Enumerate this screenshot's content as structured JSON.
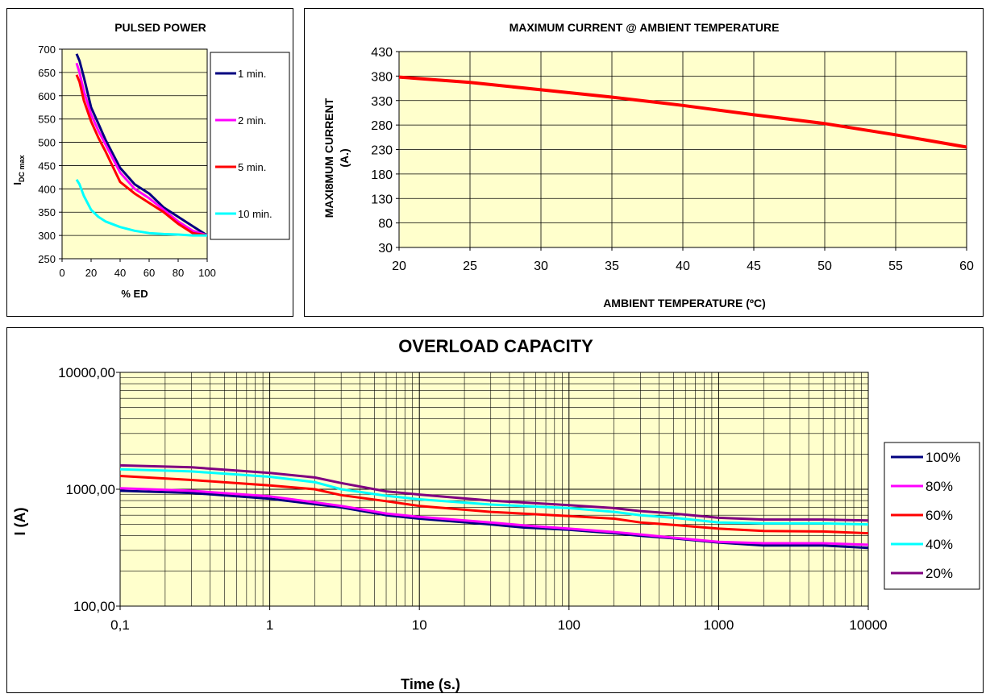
{
  "colors": {
    "plot_bg": "#ffffcc",
    "grid": "#000000",
    "navy": "#000080",
    "magenta": "#ff00ff",
    "red": "#ff0000",
    "cyan": "#00ffff",
    "purple": "#800080"
  },
  "chart_data": [
    {
      "type": "line",
      "title": "PULSED POWER",
      "xlabel": "% ED",
      "ylabel_main": "I",
      "ylabel_sub": "DC max",
      "xlim": [
        0,
        100
      ],
      "ylim": [
        250,
        700
      ],
      "x_ticks": [
        "0",
        "20",
        "40",
        "60",
        "80",
        "100"
      ],
      "y_ticks": [
        "250",
        "300",
        "350",
        "400",
        "450",
        "500",
        "550",
        "600",
        "650",
        "700"
      ],
      "grid": "horizontal",
      "legend_position": "right",
      "series": [
        {
          "name": "1 min.",
          "color": "navy",
          "points": [
            [
              10,
              690
            ],
            [
              12,
              675
            ],
            [
              15,
              640
            ],
            [
              20,
              575
            ],
            [
              25,
              540
            ],
            [
              30,
              505
            ],
            [
              40,
              445
            ],
            [
              50,
              410
            ],
            [
              60,
              390
            ],
            [
              70,
              360
            ],
            [
              80,
              340
            ],
            [
              90,
              320
            ],
            [
              100,
              300
            ]
          ]
        },
        {
          "name": "2 min.",
          "color": "magenta",
          "points": [
            [
              10,
              670
            ],
            [
              12,
              650
            ],
            [
              15,
              610
            ],
            [
              20,
              560
            ],
            [
              25,
              525
            ],
            [
              30,
              495
            ],
            [
              40,
              435
            ],
            [
              50,
              400
            ],
            [
              60,
              380
            ],
            [
              70,
              355
            ],
            [
              80,
              330
            ],
            [
              90,
              310
            ],
            [
              100,
              300
            ]
          ]
        },
        {
          "name": "5 min.",
          "color": "red",
          "points": [
            [
              10,
              645
            ],
            [
              12,
              630
            ],
            [
              15,
              590
            ],
            [
              20,
              545
            ],
            [
              25,
              510
            ],
            [
              30,
              480
            ],
            [
              40,
              415
            ],
            [
              50,
              390
            ],
            [
              60,
              370
            ],
            [
              70,
              350
            ],
            [
              80,
              325
            ],
            [
              90,
              305
            ],
            [
              100,
              300
            ]
          ]
        },
        {
          "name": "10 min.",
          "color": "cyan",
          "points": [
            [
              10,
              420
            ],
            [
              12,
              410
            ],
            [
              15,
              385
            ],
            [
              20,
              355
            ],
            [
              25,
              340
            ],
            [
              30,
              330
            ],
            [
              40,
              318
            ],
            [
              50,
              310
            ],
            [
              60,
              305
            ],
            [
              70,
              303
            ],
            [
              80,
              302
            ],
            [
              90,
              300
            ],
            [
              100,
              300
            ]
          ]
        }
      ]
    },
    {
      "type": "line",
      "title": "MAXIMUM CURRENT @ AMBIENT TEMPERATURE",
      "xlabel": "AMBIENT TEMPERATURE (ºC)",
      "ylabel_line1": "MAXI8MUM CURRENT",
      "ylabel_line2": "(A.)",
      "xlim": [
        20,
        60
      ],
      "ylim": [
        30,
        430
      ],
      "x_ticks": [
        "20",
        "25",
        "30",
        "35",
        "40",
        "45",
        "50",
        "55",
        "60"
      ],
      "y_ticks": [
        "30",
        "80",
        "130",
        "180",
        "230",
        "280",
        "330",
        "380",
        "430"
      ],
      "grid": "both",
      "series": [
        {
          "color": "red",
          "points": [
            [
              20,
              378
            ],
            [
              25,
              367
            ],
            [
              30,
              352
            ],
            [
              35,
              337
            ],
            [
              40,
              320
            ],
            [
              45,
              301
            ],
            [
              50,
              283
            ],
            [
              55,
              260
            ],
            [
              60,
              235
            ]
          ]
        }
      ]
    },
    {
      "type": "line",
      "title": "OVERLOAD CAPACITY",
      "xlabel": "Time (s.)",
      "ylabel": "I (A)",
      "xscale": "log",
      "yscale": "log",
      "xlim": [
        0.1,
        10000
      ],
      "ylim": [
        100,
        10000
      ],
      "x_ticks": [
        "0,1",
        "1",
        "10",
        "100",
        "1000",
        "10000"
      ],
      "y_ticks": [
        "100,00",
        "1000,00",
        "10000,00"
      ],
      "grid": "both",
      "legend_position": "right",
      "series": [
        {
          "name": "100%",
          "color": "navy",
          "points": [
            [
              0.1,
              970
            ],
            [
              0.3,
              930
            ],
            [
              1,
              830
            ],
            [
              3,
              700
            ],
            [
              6,
              600
            ],
            [
              10,
              560
            ],
            [
              30,
              500
            ],
            [
              50,
              470
            ],
            [
              100,
              450
            ],
            [
              200,
              420
            ],
            [
              300,
              400
            ],
            [
              500,
              380
            ],
            [
              1000,
              350
            ],
            [
              2000,
              330
            ],
            [
              5000,
              330
            ],
            [
              10000,
              315
            ]
          ]
        },
        {
          "name": "80%",
          "color": "magenta",
          "points": [
            [
              0.1,
              1020
            ],
            [
              0.3,
              970
            ],
            [
              1,
              870
            ],
            [
              3,
              720
            ],
            [
              6,
              620
            ],
            [
              10,
              580
            ],
            [
              30,
              520
            ],
            [
              50,
              490
            ],
            [
              100,
              460
            ],
            [
              200,
              430
            ],
            [
              300,
              410
            ],
            [
              500,
              385
            ],
            [
              1000,
              355
            ],
            [
              2000,
              345
            ],
            [
              5000,
              345
            ],
            [
              10000,
              335
            ]
          ]
        },
        {
          "name": "60%",
          "color": "red",
          "points": [
            [
              0.1,
              1300
            ],
            [
              0.3,
              1200
            ],
            [
              1,
              1080
            ],
            [
              2,
              1000
            ],
            [
              3,
              890
            ],
            [
              6,
              790
            ],
            [
              10,
              720
            ],
            [
              30,
              640
            ],
            [
              100,
              590
            ],
            [
              200,
              560
            ],
            [
              300,
              520
            ],
            [
              500,
              495
            ],
            [
              1000,
              460
            ],
            [
              2000,
              440
            ],
            [
              5000,
              435
            ],
            [
              10000,
              420
            ]
          ]
        },
        {
          "name": "40%",
          "color": "cyan",
          "points": [
            [
              0.1,
              1480
            ],
            [
              0.3,
              1420
            ],
            [
              1,
              1280
            ],
            [
              2,
              1150
            ],
            [
              3,
              1000
            ],
            [
              6,
              880
            ],
            [
              10,
              820
            ],
            [
              30,
              740
            ],
            [
              100,
              690
            ],
            [
              200,
              640
            ],
            [
              300,
              600
            ],
            [
              500,
              570
            ],
            [
              1000,
              520
            ],
            [
              2000,
              510
            ],
            [
              5000,
              510
            ],
            [
              10000,
              500
            ]
          ]
        },
        {
          "name": "20%",
          "color": "purple",
          "points": [
            [
              0.1,
              1600
            ],
            [
              0.3,
              1540
            ],
            [
              1,
              1380
            ],
            [
              2,
              1260
            ],
            [
              3,
              1130
            ],
            [
              6,
              960
            ],
            [
              10,
              900
            ],
            [
              30,
              800
            ],
            [
              100,
              730
            ],
            [
              200,
              690
            ],
            [
              300,
              650
            ],
            [
              500,
              620
            ],
            [
              1000,
              570
            ],
            [
              2000,
              550
            ],
            [
              5000,
              550
            ],
            [
              10000,
              540
            ]
          ]
        }
      ]
    }
  ]
}
